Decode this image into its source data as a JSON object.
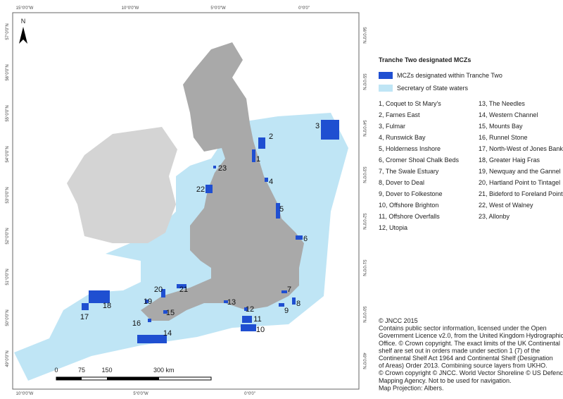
{
  "map": {
    "graticule": {
      "top": [
        "15°0'0\"W",
        "10°0'0\"W",
        "5°0'0\"W",
        "0°0'0\""
      ],
      "bottom": [
        "10°0'0\"W",
        "5°0'0\"W",
        "0°0'0\""
      ],
      "left": [
        "57°0'0\"N",
        "56°0'0\"N",
        "55°0'0\"N",
        "54°0'0\"N",
        "53°0'0\"N",
        "52°0'0\"N",
        "51°0'0\"N",
        "50°0'0\"N",
        "49°0'0\"N"
      ],
      "right": [
        "56°0'0\"N",
        "55°0'0\"N",
        "54°0'0\"N",
        "53°0'0\"N",
        "52°0'0\"N",
        "51°0'0\"N",
        "50°0'0\"N",
        "49°0'0\"N"
      ]
    },
    "north": "N",
    "scale": [
      "0",
      "75",
      "150",
      "300 km"
    ],
    "mcz_labels": [
      "1",
      "2",
      "3",
      "4",
      "5",
      "6",
      "7",
      "8",
      "9",
      "10",
      "11",
      "12",
      "13",
      "14",
      "15",
      "16",
      "17",
      "18",
      "19",
      "20",
      "21",
      "22",
      "23"
    ]
  },
  "legend": {
    "title": "Tranche Two designated MCZs",
    "items": [
      "MCZs designated within Tranche Two",
      "Secretary of State waters"
    ],
    "sites": [
      "1, Coquet to St Mary's",
      "2, Farnes East",
      "3, Fulmar",
      "4, Runswick Bay",
      "5, Holderness Inshore",
      "6, Cromer Shoal Chalk Beds",
      "7, The Swale Estuary",
      "8, Dover to Deal",
      "9, Dover to Folkestone",
      "10, Offshore Brighton",
      "11, Offshore Overfalls",
      "12, Utopia",
      "13, The Needles",
      "14, Western Channel",
      "15, Mounts Bay",
      "16, Runnel Stone",
      "17, North-West of Jones Bank",
      "18, Greater Haig Fras",
      "19, Newquay and the Gannel",
      "20, Hartland Point to Tintagel",
      "21, Bideford to Foreland Point",
      "22, West of Walney",
      "23, Allonby"
    ]
  },
  "credits": [
    "© JNCC 2015",
    "Contains public sector information, licensed under the Open",
    "Government Licence v2.0, from the United Kingdom Hydrographic",
    "Office. © Crown copyright. The exact limits of the UK Continental",
    "shelf are set out in orders made under section 1 (7) of the",
    "Continental Shelf Act 1964 and Continental Shelf (Designation",
    "of Areas) Order 2013. Combining source layers from UKHO.",
    "© Crown copyright © JNCC. World Vector Shoreline © US Defence",
    "Mapping Agency. Not to be used for navigation.",
    "Map Projection: Albers."
  ]
}
